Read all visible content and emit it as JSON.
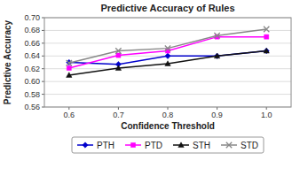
{
  "chart_data": {
    "type": "line",
    "title": "Predictive Accuracy of Rules",
    "xlabel": "Confidence Threshold",
    "ylabel": "Predictive Accuracy",
    "x": [
      0.6,
      0.7,
      0.8,
      0.9,
      1.0
    ],
    "series": [
      {
        "name": "PTH",
        "color": "#0000cc",
        "marker": "diamond",
        "values": [
          0.63,
          0.627,
          0.64,
          0.64,
          0.648
        ]
      },
      {
        "name": "PTD",
        "color": "#ff00ff",
        "marker": "square",
        "values": [
          0.621,
          0.641,
          0.648,
          0.67,
          0.67
        ]
      },
      {
        "name": "STH",
        "color": "#111111",
        "marker": "triangle",
        "values": [
          0.61,
          0.621,
          0.628,
          0.64,
          0.648
        ]
      },
      {
        "name": "STD",
        "color": "#888888",
        "marker": "x",
        "values": [
          0.629,
          0.648,
          0.652,
          0.672,
          0.682
        ]
      }
    ],
    "xlim": [
      0.55,
      1.05
    ],
    "xticks": [
      0.6,
      0.7,
      0.8,
      0.9,
      {
        "value": 1.0,
        "label": "1.0"
      }
    ],
    "ylim": [
      0.56,
      0.7
    ],
    "yticks": [
      0.56,
      0.58,
      {
        "value": 0.6,
        "label": "0.60"
      },
      0.62,
      0.64,
      0.66,
      0.68,
      {
        "value": 0.7,
        "label": "0.70"
      }
    ],
    "grid": true,
    "legend": "bottom"
  }
}
